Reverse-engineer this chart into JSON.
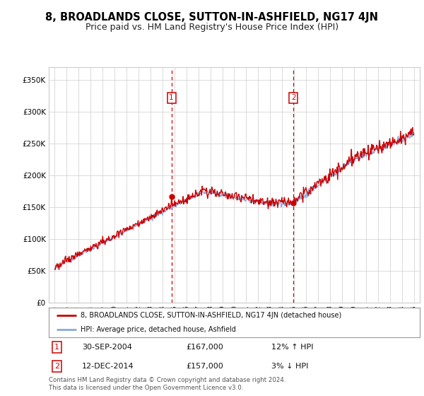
{
  "title": "8, BROADLANDS CLOSE, SUTTON-IN-ASHFIELD, NG17 4JN",
  "subtitle": "Price paid vs. HM Land Registry's House Price Index (HPI)",
  "footer": "Contains HM Land Registry data © Crown copyright and database right 2024.\nThis data is licensed under the Open Government Licence v3.0.",
  "legend_line1": "8, BROADLANDS CLOSE, SUTTON-IN-ASHFIELD, NG17 4JN (detached house)",
  "legend_line2": "HPI: Average price, detached house, Ashfield",
  "transactions": [
    {
      "num": 1,
      "date": "30-SEP-2004",
      "price": 167000,
      "hpi_pct": "12%",
      "hpi_dir": "↑"
    },
    {
      "num": 2,
      "date": "12-DEC-2014",
      "price": 157000,
      "hpi_pct": "3%",
      "hpi_dir": "↓"
    }
  ],
  "transaction_years": [
    2004.75,
    2014.95
  ],
  "ylim": [
    0,
    370000
  ],
  "yticks": [
    0,
    50000,
    100000,
    150000,
    200000,
    250000,
    300000,
    350000
  ],
  "xlim_start": 1994.5,
  "xlim_end": 2025.5,
  "red_color": "#cc0000",
  "blue_color": "#88aadd",
  "shade_color": "#ddeeff",
  "grid_color": "#cccccc",
  "background_color": "#ffffff",
  "title_fontsize": 10.5,
  "subtitle_fontsize": 9
}
